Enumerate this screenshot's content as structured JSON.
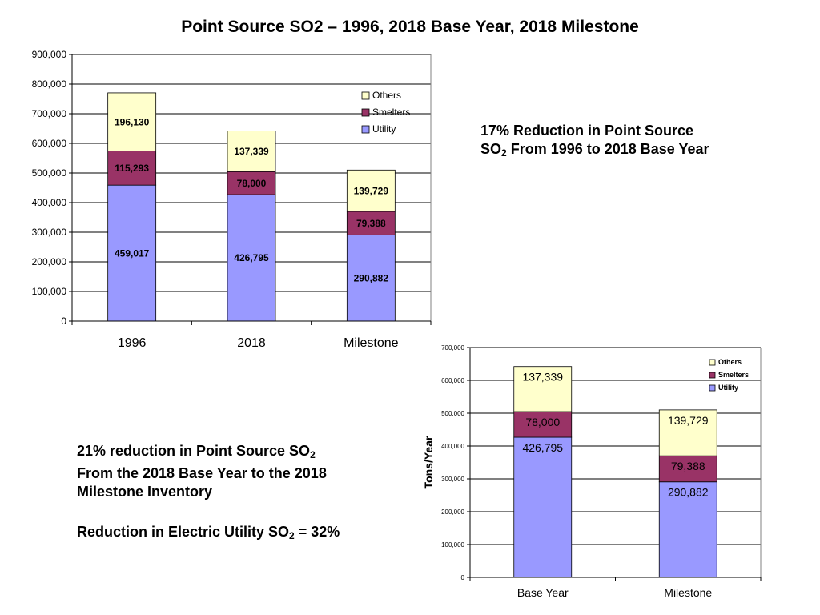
{
  "slide": {
    "title": "Point Source SO2 – 1996, 2018 Base Year, 2018 Milestone"
  },
  "colors": {
    "utility": "#9999ff",
    "smelters": "#993366",
    "others": "#ffffcc"
  },
  "note_top": {
    "line1": "17% Reduction in Point Source",
    "line2_pre": "SO",
    "line2_sub": "2",
    "line2_post": " From 1996 to 2018 Base Year"
  },
  "note_bottom": {
    "p1_pre": "21% reduction in Point Source SO",
    "p1_sub": "2",
    "p1_line2": "From the 2018 Base Year to the 2018",
    "p1_line3": "Milestone Inventory",
    "p2_pre": "Reduction in Electric Utility SO",
    "p2_sub": "2",
    "p2_post": " = 32%"
  },
  "chart_data": [
    {
      "type": "bar",
      "stacked": true,
      "title": "",
      "xlabel": "",
      "ylabel": "",
      "categories": [
        "1996",
        "2018",
        "Milestone"
      ],
      "ylim": [
        0,
        900000
      ],
      "yticks": [
        "0",
        "100,000",
        "200,000",
        "300,000",
        "400,000",
        "500,000",
        "600,000",
        "700,000",
        "800,000",
        "900,000"
      ],
      "grid": true,
      "legend_position": "top-right",
      "series": [
        {
          "name": "Utility",
          "values": [
            459017,
            426795,
            290882
          ],
          "labels": [
            "459,017",
            "426,795",
            "290,882"
          ]
        },
        {
          "name": "Smelters",
          "values": [
            115293,
            78000,
            79388
          ],
          "labels": [
            "115,293",
            "78,000",
            "79,388"
          ]
        },
        {
          "name": "Others",
          "values": [
            196130,
            137339,
            139729
          ],
          "labels": [
            "196,130",
            "137,339",
            "139,729"
          ]
        }
      ]
    },
    {
      "type": "bar",
      "stacked": true,
      "title": "",
      "xlabel": "",
      "ylabel": "Tons/Year",
      "categories": [
        "Base Year",
        "Milestone"
      ],
      "ylim": [
        0,
        700000
      ],
      "yticks": [
        "0",
        "100,000",
        "200,000",
        "300,000",
        "400,000",
        "500,000",
        "600,000",
        "700,000"
      ],
      "grid": true,
      "legend_position": "top-right",
      "series": [
        {
          "name": "Utility",
          "values": [
            426795,
            290882
          ],
          "labels": [
            "426,795",
            "290,882"
          ]
        },
        {
          "name": "Smelters",
          "values": [
            78000,
            79388
          ],
          "labels": [
            "78,000",
            "79,388"
          ]
        },
        {
          "name": "Others",
          "values": [
            137339,
            139729
          ],
          "labels": [
            "137,339",
            "139,729"
          ]
        }
      ]
    }
  ]
}
